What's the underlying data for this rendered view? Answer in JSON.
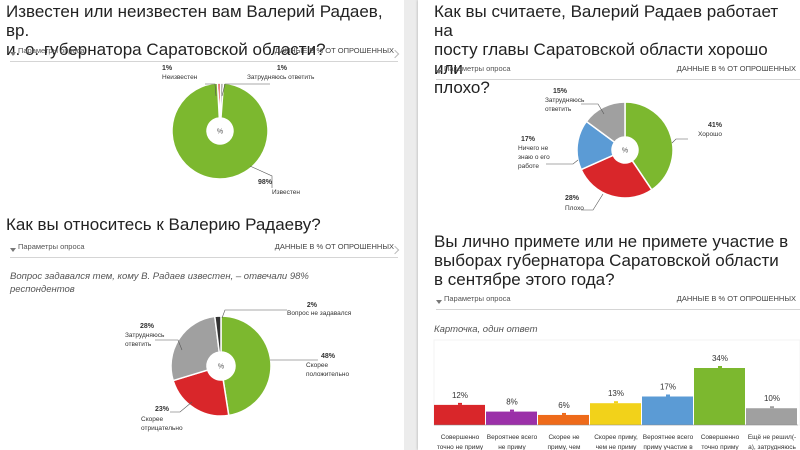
{
  "common": {
    "params_label": "Параметры опроса",
    "data_label": "ДАННЫЕ В % ОТ ОПРОШЕННЫХ",
    "center_symbol": "%"
  },
  "left": {
    "q1": {
      "title_line1": "Известен или неизвестен вам Валерий Радаев, вр.",
      "title_line2": "и. о. губернатора Саратовской области?"
    },
    "q2": {
      "title": "Как вы относитесь к Валерию Радаеву?",
      "note_line1": "Вопрос задавался тем, кому В. Радаев известен, – отвечали 98%",
      "note_line2": "респондентов"
    }
  },
  "right": {
    "q3": {
      "title_line1": "Как вы считаете, Валерий Радаев работает на",
      "title_line2": "посту главы Саратовской области хорошо или",
      "title_line3": "плохо?"
    },
    "q4": {
      "title_line1": "Вы лично примете или не примете участие в",
      "title_line2": "выборах губернатора Саратовской области",
      "title_line3": "в сентябре этого года?",
      "note": "Карточка, один ответ"
    }
  },
  "chart_data": [
    {
      "type": "pie",
      "title": "Известен или неизвестен вам Валерий Радаев, вр. и. о. губернатора Саратовской области?",
      "slices": [
        {
          "name": "Известен",
          "value": 98,
          "label": "98%",
          "color": "#7cb82f"
        },
        {
          "name": "Неизвестен",
          "value": 1,
          "label": "1%",
          "color": "#d9262a"
        },
        {
          "name": "Затрудняюсь ответить",
          "value": 1,
          "label": "1%",
          "color": "#a0a0a0"
        }
      ]
    },
    {
      "type": "pie",
      "title": "Как вы относитесь к Валерию Радаеву?",
      "slices": [
        {
          "name": "Скорее положительно",
          "value": 48,
          "label": "48%",
          "color": "#7cb82f"
        },
        {
          "name": "Скорее отрицательно",
          "value": 23,
          "label": "23%",
          "color": "#d9262a"
        },
        {
          "name": "Затрудняюсь ответить",
          "value": 28,
          "label": "28%",
          "color": "#a0a0a0"
        },
        {
          "name": "Вопрос не задавался",
          "value": 2,
          "label": "2%",
          "color": "#333333"
        }
      ]
    },
    {
      "type": "pie",
      "title": "Как вы считаете, Валерий Радаев работает на посту главы Саратовской области хорошо или плохо?",
      "slices": [
        {
          "name": "Хорошо",
          "value": 41,
          "label": "41%",
          "color": "#7cb82f"
        },
        {
          "name": "Плохо",
          "value": 28,
          "label": "28%",
          "color": "#d9262a"
        },
        {
          "name": "Ничего не знаю о его работе",
          "value": 17,
          "label": "17%",
          "color": "#5b9bd5"
        },
        {
          "name": "Затрудняюсь ответить",
          "value": 15,
          "label": "15%",
          "color": "#a0a0a0"
        }
      ]
    },
    {
      "type": "bar",
      "title": "Вы лично примете или не примете участие в выборах губернатора Саратовской области в сентябре этого года?",
      "categories": [
        "Совершенно точно не приму",
        "Вероятнее всего не приму",
        "Скорее не приму, чем",
        "Скорее приму, чем не приму",
        "Вероятнее всего приму участие в",
        "Совершенно точно приму",
        "Ещё не решил(-а), затрудняюсь"
      ],
      "values": [
        12,
        8,
        6,
        13,
        17,
        34,
        10
      ],
      "labels": [
        "12%",
        "8%",
        "6%",
        "13%",
        "17%",
        "34%",
        "10%"
      ],
      "colors": [
        "#d9262a",
        "#9b30a8",
        "#ee6a1a",
        "#f2d21a",
        "#5b9bd5",
        "#7cb82f",
        "#a0a0a0"
      ],
      "ylim": [
        0,
        40
      ]
    }
  ]
}
